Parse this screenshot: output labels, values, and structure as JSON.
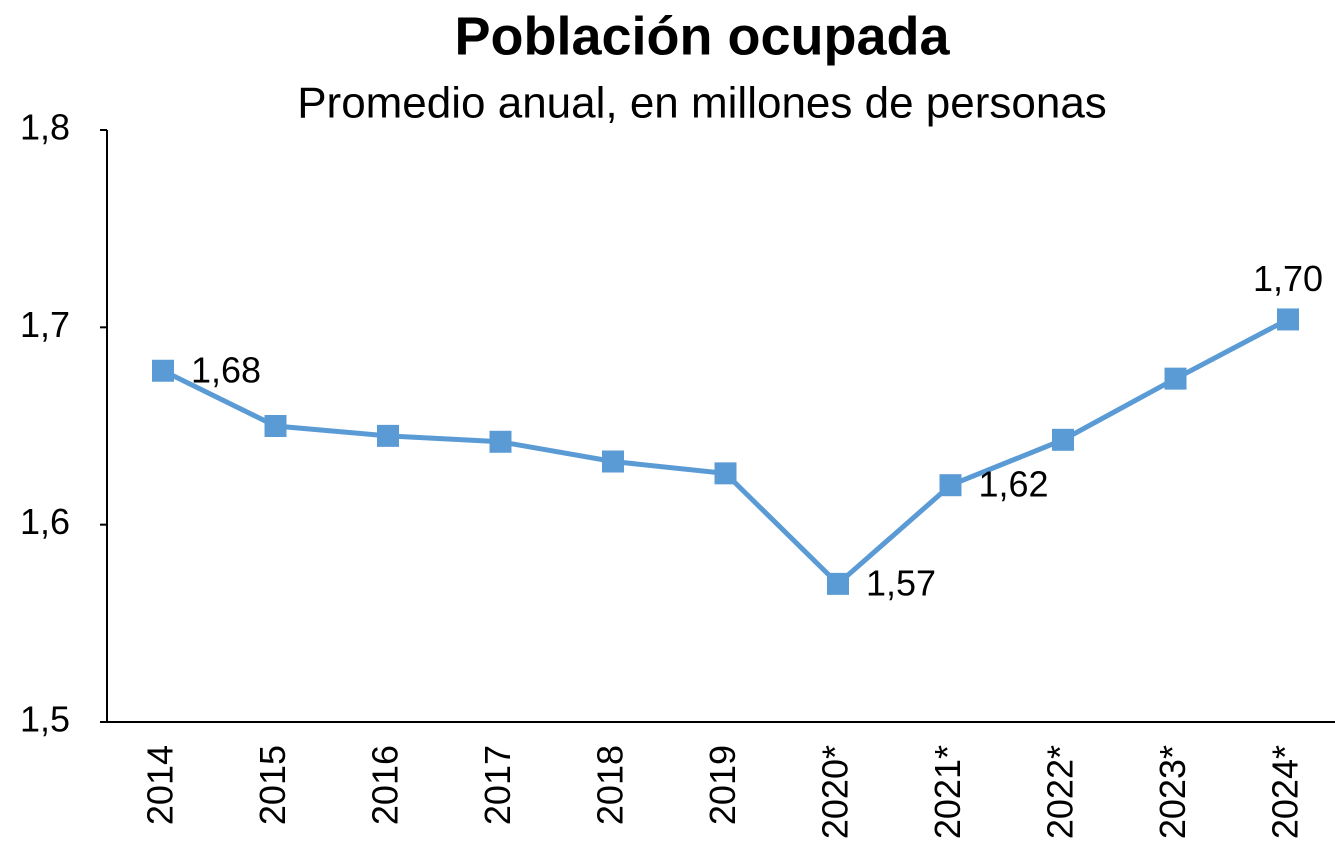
{
  "chart_data": {
    "type": "line",
    "title": "Población ocupada",
    "subtitle": "Promedio anual, en millones de personas",
    "categories": [
      "2014",
      "2015",
      "2016",
      "2017",
      "2018",
      "2019",
      "2020*",
      "2021*",
      "2022*",
      "2023*",
      "2024*"
    ],
    "series": [
      {
        "name": "Población ocupada",
        "color": "#5b9bd5",
        "values": [
          1.678,
          1.65,
          1.645,
          1.642,
          1.632,
          1.626,
          1.57,
          1.62,
          1.643,
          1.674,
          1.704
        ],
        "value_labels": [
          "1,68",
          null,
          null,
          null,
          null,
          null,
          "1,57",
          "1,62",
          null,
          null,
          "1,70"
        ]
      }
    ],
    "ylim": [
      1.5,
      1.8
    ],
    "yticks": [
      {
        "value": 1.5,
        "label": "1,5"
      },
      {
        "value": 1.6,
        "label": "1,6"
      },
      {
        "value": 1.7,
        "label": "1,7"
      },
      {
        "value": 1.8,
        "label": "1,8"
      }
    ],
    "grid": false
  }
}
